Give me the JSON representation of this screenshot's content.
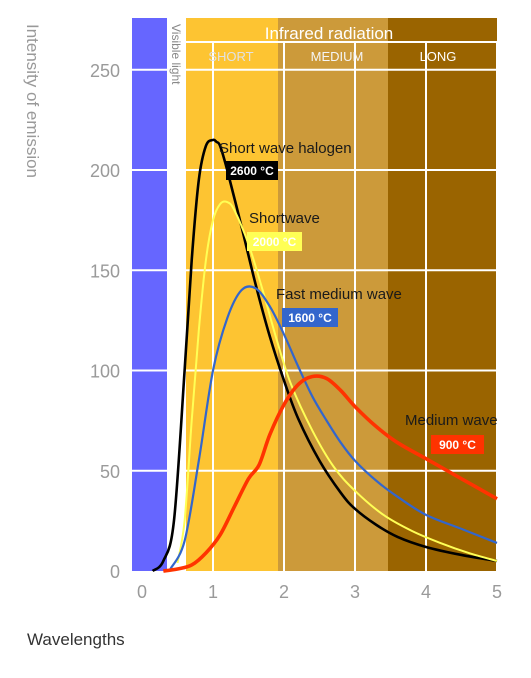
{
  "chart_data": {
    "type": "line",
    "ylabel": "Intensity of emission",
    "xlabel": "Wavelengths",
    "xlim": [
      0,
      5
    ],
    "ylim": [
      0,
      270
    ],
    "xticks": [
      0,
      1,
      2,
      3,
      4,
      5
    ],
    "yticks": [
      0,
      50,
      100,
      150,
      200,
      250
    ],
    "grid": true,
    "regions": {
      "visible_band": {
        "label": "Visible light",
        "x": [
          0.0,
          0.3
        ],
        "color": "#6666ff"
      },
      "visible_gap": {
        "x": [
          0.3,
          0.6
        ],
        "color": "#ffffff"
      },
      "infrared": {
        "title": "Infrared radiation",
        "title_color": "#ffffff",
        "bands": [
          {
            "label": "SHORT",
            "x": [
              0.6,
              1.8
            ],
            "color": "#fdc432",
            "text_color": "#e2e2e2"
          },
          {
            "label": "MEDIUM",
            "x": [
              1.8,
              3.35
            ],
            "color": "#cc9a3a",
            "text_color": "#f5f5f5"
          },
          {
            "label": "LONG",
            "x": [
              3.35,
              5.0
            ],
            "color": "#9a6400",
            "text_color": "#ffffff"
          }
        ]
      }
    },
    "series": [
      {
        "name": "Short wave halogen",
        "temperature": "2600 °C",
        "color": "#000000",
        "label_bg": "#000000",
        "x": [
          0.15,
          0.3,
          0.45,
          0.6,
          0.7,
          0.8,
          0.9,
          1.0,
          1.05,
          1.1,
          1.2,
          1.4,
          1.6,
          1.8,
          2.0,
          2.2,
          2.5,
          2.8,
          3.0,
          3.3,
          3.6,
          4.0,
          4.5,
          5.0
        ],
        "y": [
          0,
          5,
          25,
          100,
          155,
          195,
          212,
          215,
          214,
          212,
          200,
          172,
          143,
          117,
          95,
          76,
          55,
          39,
          31,
          23,
          17,
          12,
          8,
          5
        ]
      },
      {
        "name": "Shortwave",
        "temperature": "2000 °C",
        "color": "#ffff55",
        "label_bg": "#ffff55",
        "x": [
          0.5,
          0.6,
          0.7,
          0.8,
          0.9,
          1.0,
          1.1,
          1.2,
          1.3,
          1.5,
          1.7,
          1.9,
          2.1,
          2.4,
          2.7,
          3.0,
          3.4,
          3.8,
          4.2,
          4.6,
          5.0
        ],
        "y": [
          4,
          25,
          75,
          120,
          155,
          175,
          183,
          184,
          180,
          163,
          140,
          115,
          93,
          70,
          52,
          40,
          28,
          20,
          14,
          9,
          5
        ]
      },
      {
        "name": "Fast medium wave",
        "temperature": "1600 °C",
        "color": "#3366cc",
        "label_bg": "#3366cc",
        "x": [
          0.4,
          0.6,
          0.8,
          1.0,
          1.2,
          1.4,
          1.6,
          1.8,
          2.0,
          2.2,
          2.4,
          2.6,
          2.8,
          3.0,
          3.3,
          3.6,
          4.0,
          4.5,
          5.0
        ],
        "y": [
          1,
          15,
          55,
          100,
          126,
          140,
          141,
          132,
          118,
          102,
          87,
          75,
          64,
          55,
          45,
          37,
          28,
          21,
          14
        ]
      },
      {
        "name": "Medium wave",
        "temperature": "900 °C",
        "color": "#ff3300",
        "label_bg": "#ff3300",
        "x": [
          0.3,
          0.5,
          0.7,
          0.9,
          1.1,
          1.3,
          1.5,
          1.65,
          1.8,
          2.0,
          2.2,
          2.4,
          2.6,
          2.8,
          3.0,
          3.3,
          3.6,
          4.0,
          4.5,
          5.0
        ],
        "y": [
          0,
          1,
          3,
          9,
          18,
          32,
          46,
          53,
          68,
          83,
          93,
          97,
          96,
          90,
          82,
          72,
          64,
          56,
          46,
          36
        ]
      }
    ]
  }
}
